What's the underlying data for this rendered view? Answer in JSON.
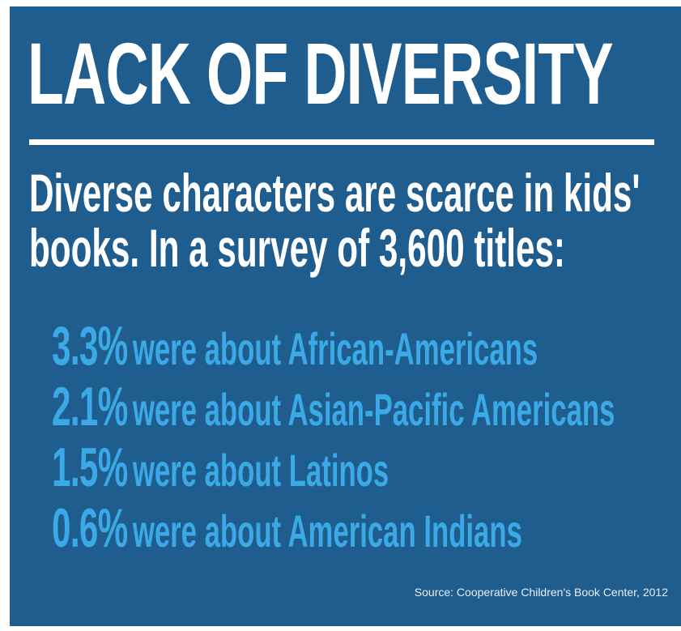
{
  "colors": {
    "background": "#1f5d8f",
    "title_text": "#ffffff",
    "stat_text": "#3aa9e6"
  },
  "title": "LACK OF DIVERSITY",
  "intro": {
    "line1": "Diverse characters are scarce in kids'",
    "line2": "books. In a survey of 3,600 titles:"
  },
  "stats": [
    {
      "percent": "3.3%",
      "text": "were about African-Americans"
    },
    {
      "percent": "2.1%",
      "text": "were about Asian-Pacific Americans"
    },
    {
      "percent": "1.5%",
      "text": "were about Latinos"
    },
    {
      "percent": "0.6%",
      "text": "were about American Indians"
    }
  ],
  "source": "Source: Cooperative Children's Book Center, 2012"
}
